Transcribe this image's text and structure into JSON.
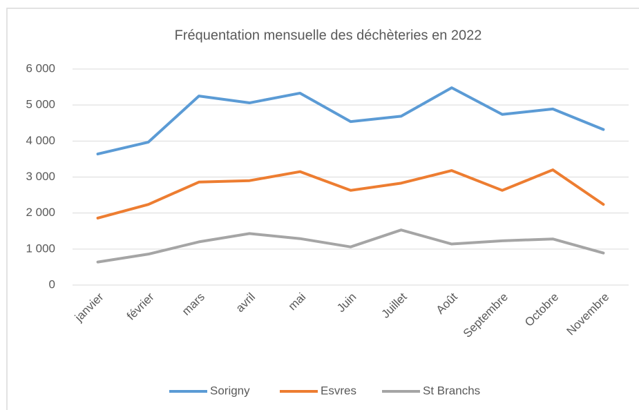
{
  "chart_data": {
    "type": "line",
    "title": "Fréquentation mensuelle des déchèteries en 2022",
    "categories": [
      "janvier",
      "février",
      "mars",
      "avril",
      "mai",
      "Juin",
      "Juillet",
      "Août",
      "Septembre",
      "Octobre",
      "Novembre"
    ],
    "series": [
      {
        "name": "Sorigny",
        "color": "#5b9bd5",
        "values": [
          3640,
          3970,
          5250,
          5060,
          5330,
          4540,
          4690,
          5480,
          4740,
          4890,
          4320
        ]
      },
      {
        "name": "Esvres",
        "color": "#ed7d31",
        "values": [
          1860,
          2240,
          2860,
          2900,
          3150,
          2630,
          2830,
          3180,
          2630,
          3200,
          2240
        ]
      },
      {
        "name": "St Branchs",
        "color": "#a5a5a5",
        "values": [
          640,
          860,
          1200,
          1430,
          1290,
          1060,
          1530,
          1140,
          1230,
          1280,
          890
        ]
      }
    ],
    "ylim": [
      0,
      6000
    ],
    "yticks": [
      0,
      {
        "value": 1000,
        "label": "1 000"
      },
      {
        "value": 2000,
        "label": "2 000"
      },
      {
        "value": 3000,
        "label": "3 000"
      },
      {
        "value": 4000,
        "label": "4 000"
      },
      {
        "value": 5000,
        "label": "5 000"
      },
      {
        "value": 6000,
        "label": "6 000"
      }
    ],
    "grid": true,
    "legend": "bottom"
  }
}
